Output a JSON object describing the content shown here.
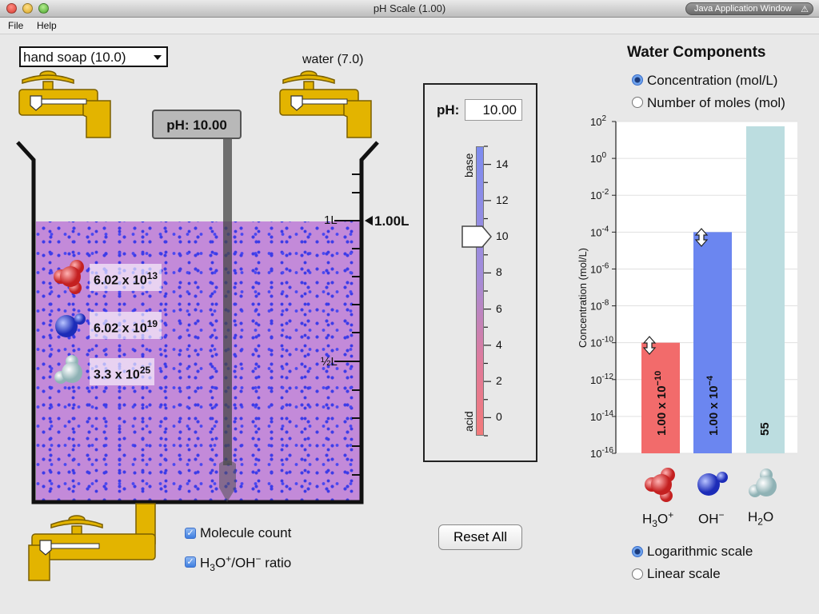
{
  "window": {
    "title": "pH Scale (1.00)",
    "badge": "Java Application Window"
  },
  "menu": {
    "file": "File",
    "help": "Help"
  },
  "solute": {
    "selected": "hand soap (10.0)"
  },
  "water_faucet": {
    "label": "water (7.0)"
  },
  "ph_meter": {
    "text": "pH: 10.00"
  },
  "beaker": {
    "volume_label": "1.00L",
    "mark_1l": "1L",
    "mark_half": "½L",
    "fill_fraction": 1.0,
    "molecule_counts": {
      "h3o": {
        "base": "6.02 x 10",
        "exp": "13"
      },
      "oh": {
        "base": "6.02 x 10",
        "exp": "19"
      },
      "h2o": {
        "base": "3.3 x 10",
        "exp": "25"
      }
    }
  },
  "options": {
    "molecule_count": {
      "label": "Molecule count",
      "checked": true
    },
    "ratio": {
      "label_parts": [
        "H",
        "3",
        "O",
        "+",
        "/OH",
        "−",
        " ratio"
      ],
      "checked": true
    }
  },
  "ph_slider": {
    "label": "pH:",
    "value": "10.00",
    "ticks": [
      "14",
      "12",
      "10",
      "8",
      "6",
      "4",
      "2",
      "0"
    ],
    "base_label": "base",
    "acid_label": "acid",
    "value_numeric": 10.0,
    "range": [
      -1,
      15
    ]
  },
  "reset": {
    "label": "Reset All"
  },
  "water_components": {
    "title": "Water Components",
    "units": {
      "concentration": "Concentration (mol/L)",
      "moles": "Number of moles (mol)",
      "selected": "concentration"
    },
    "scale": {
      "log": "Logarithmic scale",
      "linear": "Linear scale",
      "selected": "log"
    },
    "molecule_names": {
      "h3o": [
        "H",
        "3",
        "O",
        "+"
      ],
      "oh": [
        "OH",
        "−"
      ],
      "h2o": [
        "H",
        "2",
        "O"
      ]
    }
  },
  "chart_data": {
    "type": "bar",
    "ylabel": "Concentration (mol/L)",
    "yscale": "log",
    "ylim": [
      1e-16,
      100
    ],
    "yticks": [
      {
        "base": "10",
        "exp": "2"
      },
      {
        "base": "10",
        "exp": "0"
      },
      {
        "base": "10",
        "exp": "-2"
      },
      {
        "base": "10",
        "exp": "-4"
      },
      {
        "base": "10",
        "exp": "-6"
      },
      {
        "base": "10",
        "exp": "-8"
      },
      {
        "base": "10",
        "exp": "-10"
      },
      {
        "base": "10",
        "exp": "-12"
      },
      {
        "base": "10",
        "exp": "-14"
      },
      {
        "base": "10",
        "exp": "-16"
      }
    ],
    "categories": [
      "H3O+",
      "OH-",
      "H2O"
    ],
    "values": [
      1e-10,
      0.0001,
      55
    ],
    "bar_labels": [
      {
        "base": "1.00 x 10",
        "exp": "−10"
      },
      {
        "base": "1.00 x 10",
        "exp": "−4"
      },
      {
        "base": "55",
        "exp": ""
      }
    ],
    "colors": [
      "#f26b6b",
      "#6b86f0",
      "#bcdde0"
    ],
    "grid": true
  }
}
